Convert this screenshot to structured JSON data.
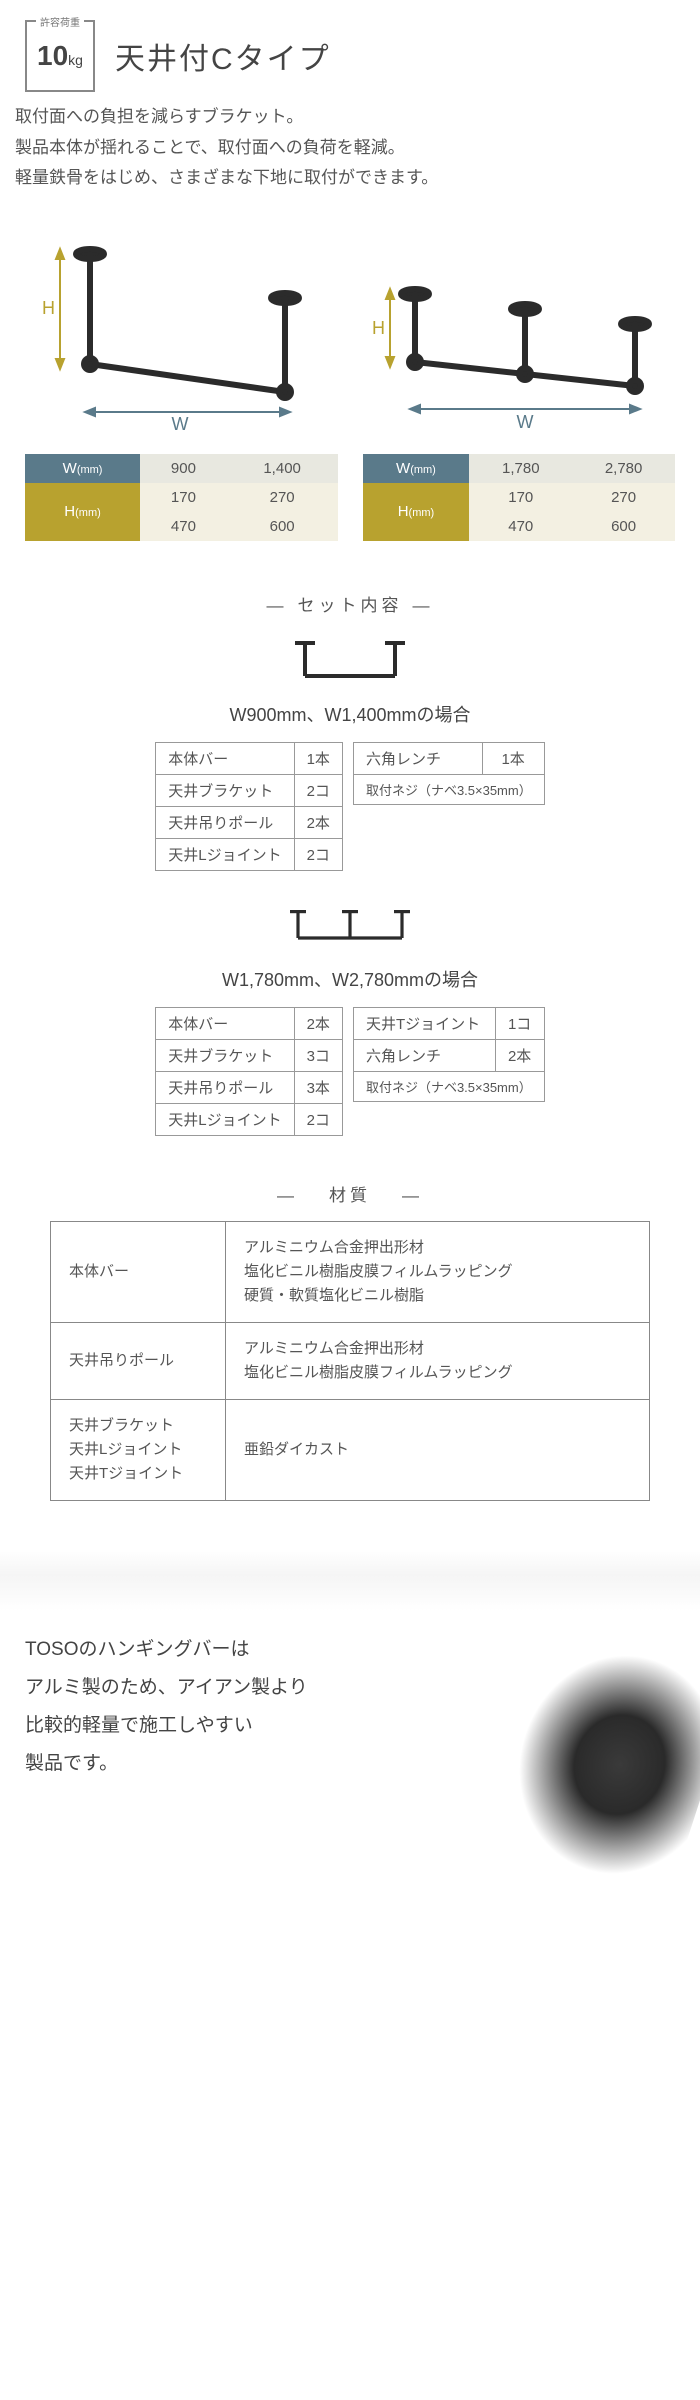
{
  "badge": {
    "top": "許容荷重",
    "num": "10",
    "unit": "kg"
  },
  "title": "天井付Cタイプ",
  "desc": [
    "取付面への負担を減らすブラケット。",
    "製品本体が揺れることで、取付面への負荷を軽減。",
    "軽量鉄骨をはじめ、さまざまな下地に取付ができます。"
  ],
  "diagram_style": {
    "stroke": "#2b2b2b",
    "stroke_width": 5,
    "arrow_color": "#5a7a8a",
    "arrow_color_h": "#b8a22f",
    "label_w": "W",
    "label_h": "H"
  },
  "dim_tables": [
    {
      "w_label": "W",
      "h_label": "H",
      "mm": "(mm)",
      "w": [
        "900",
        "1,400"
      ],
      "h": [
        [
          "170",
          "270"
        ],
        [
          "470",
          "600"
        ]
      ]
    },
    {
      "w_label": "W",
      "h_label": "H",
      "mm": "(mm)",
      "w": [
        "1,780",
        "2,780"
      ],
      "h": [
        [
          "170",
          "270"
        ],
        [
          "470",
          "600"
        ]
      ]
    }
  ],
  "set_head": "セット内容",
  "sets": [
    {
      "caption": "W900mm、W1,400mmの場合",
      "icon": {
        "legs": 2
      },
      "left": [
        [
          "本体バー",
          "1本"
        ],
        [
          "天井ブラケット",
          "2コ"
        ],
        [
          "天井吊りポール",
          "2本"
        ],
        [
          "天井Lジョイント",
          "2コ"
        ]
      ],
      "right": [
        [
          "六角レンチ",
          "1本"
        ],
        [
          "取付ネジ（ナベ3.5×35mm）",
          ""
        ]
      ]
    },
    {
      "caption": "W1,780mm、W2,780mmの場合",
      "icon": {
        "legs": 3
      },
      "left": [
        [
          "本体バー",
          "2本"
        ],
        [
          "天井ブラケット",
          "3コ"
        ],
        [
          "天井吊りポール",
          "3本"
        ],
        [
          "天井Lジョイント",
          "2コ"
        ]
      ],
      "right": [
        [
          "天井Tジョイント",
          "1コ"
        ],
        [
          "六角レンチ",
          "2本"
        ],
        [
          "取付ネジ（ナベ3.5×35mm）",
          ""
        ]
      ]
    }
  ],
  "mat_head": "材質",
  "materials": [
    {
      "name": "本体バー",
      "val": "アルミニウム合金押出形材\n塩化ビニル樹脂皮膜フィルムラッピング\n硬質・軟質塩化ビニル樹脂"
    },
    {
      "name": "天井吊りポール",
      "val": "アルミニウム合金押出形材\n塩化ビニル樹脂皮膜フィルムラッピング"
    },
    {
      "name": "天井ブラケット\n天井Lジョイント\n天井Tジョイント",
      "val": "亜鉛ダイカスト"
    }
  ],
  "footer": [
    "TOSOのハンギングバーは",
    "アルミ製のため、アイアン製より",
    "比較的軽量で施工しやすい",
    "製品です。"
  ]
}
